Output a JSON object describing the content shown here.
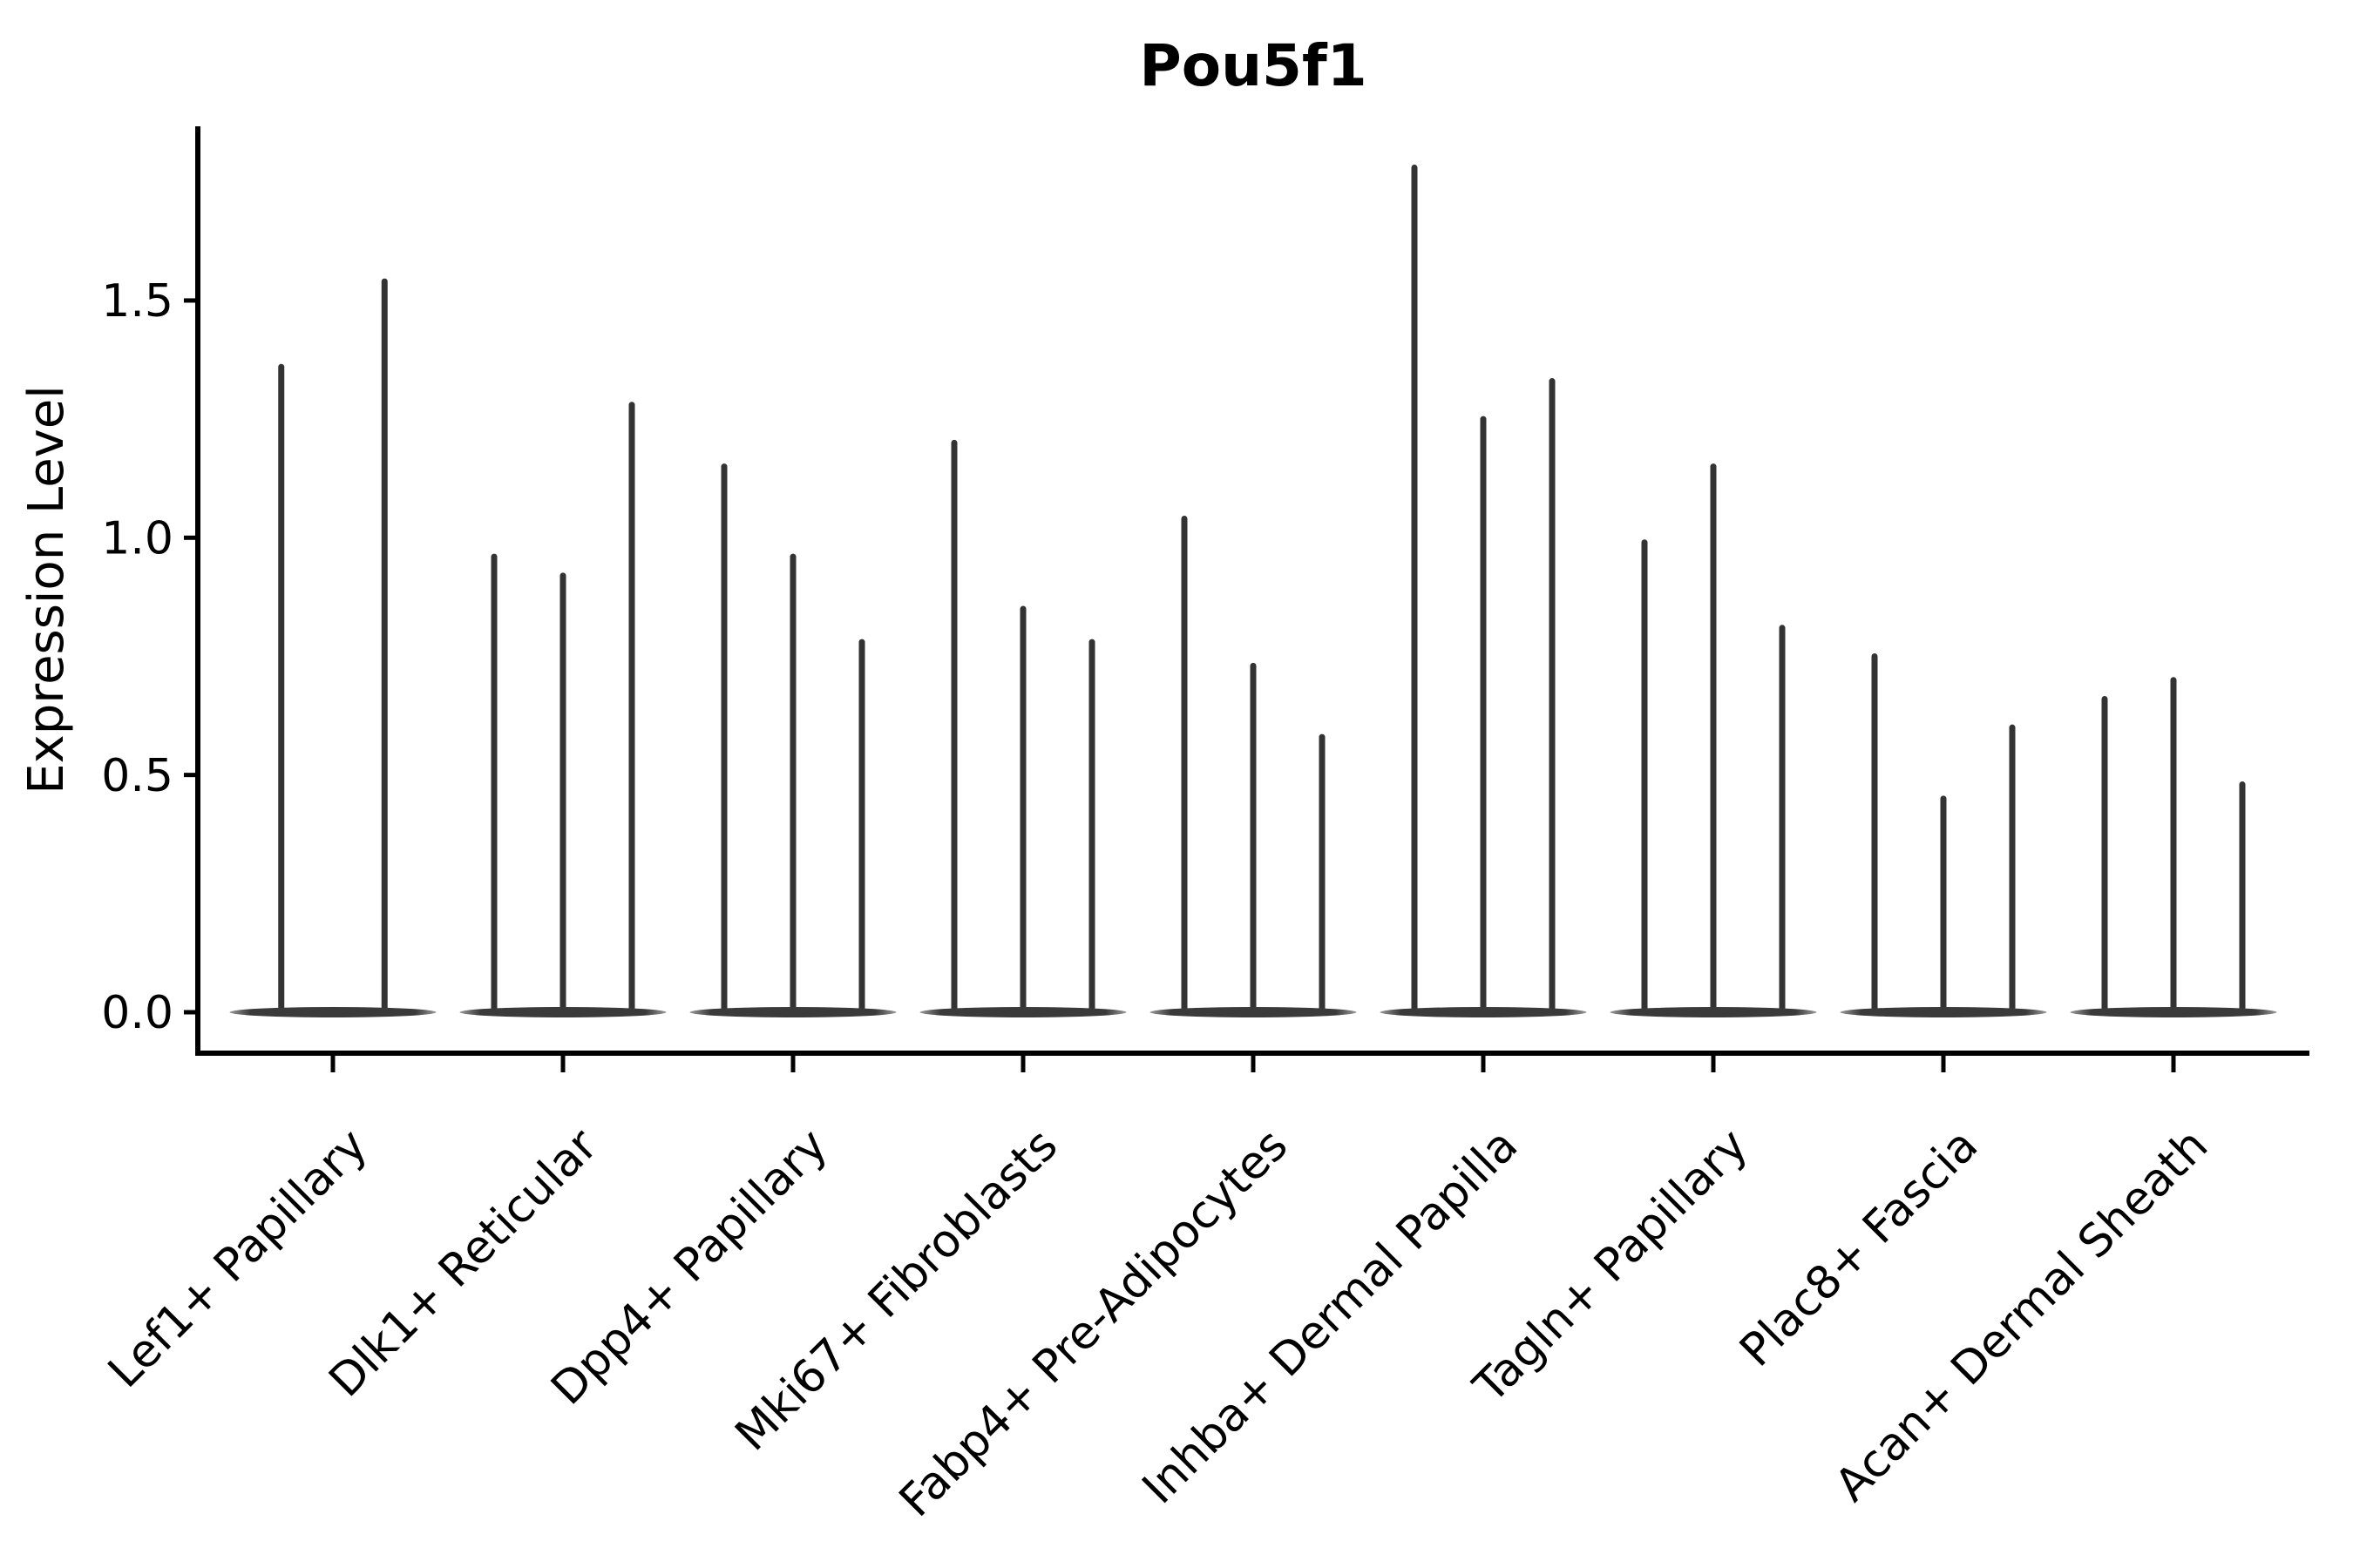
{
  "title": "Pou5f1",
  "y_axis": {
    "label": "Expression Level",
    "tick_labels": [
      "0.0",
      "0.5",
      "1.0",
      "1.5"
    ],
    "tick_values": [
      0.0,
      0.5,
      1.0,
      1.5
    ]
  },
  "chart_data": {
    "type": "violin",
    "title": "Pou5f1",
    "xlabel": "",
    "ylabel": "Expression Level",
    "ylim": [
      -0.09,
      1.87
    ],
    "yticks": [
      0.0,
      0.5,
      1.0,
      1.5
    ],
    "grid": false,
    "legend": "none",
    "orientation": "vertical",
    "description": "Grouped single-cell expression violins; each violin is a thin spike from 0 up to its maximum with a wide flat density bulge at 0.",
    "categories": [
      "Lef1+ Papillary",
      "Dlk1+ Reticular",
      "Dpp4+ Papillary",
      "Mki67+ Fibroblasts",
      "Fabp4+ Pre-Adipocytes",
      "Inhba+ Dermal Papilla",
      "Tagln+ Papillary",
      "Plac8+ Fascia",
      "Acan+ Dermal Sheath"
    ],
    "groups": [
      {
        "label": "Lef1+ Papillary",
        "violin_maxima": [
          1.36,
          1.54
        ]
      },
      {
        "label": "Dlk1+ Reticular",
        "violin_maxima": [
          0.96,
          0.92,
          1.28
        ]
      },
      {
        "label": "Dpp4+ Papillary",
        "violin_maxima": [
          1.15,
          0.96,
          0.78
        ]
      },
      {
        "label": "Mki67+ Fibroblasts",
        "violin_maxima": [
          1.2,
          0.85,
          0.78
        ]
      },
      {
        "label": "Fabp4+ Pre-Adipocytes",
        "violin_maxima": [
          1.04,
          0.73,
          0.58
        ]
      },
      {
        "label": "Inhba+ Dermal Papilla",
        "violin_maxima": [
          1.78,
          1.25,
          1.33
        ]
      },
      {
        "label": "Tagln+ Papillary",
        "violin_maxima": [
          0.99,
          1.15,
          0.81
        ]
      },
      {
        "label": "Plac8+ Fascia",
        "violin_maxima": [
          0.75,
          0.45,
          0.6
        ]
      },
      {
        "label": "Acan+ Dermal Sheath",
        "violin_maxima": [
          0.66,
          0.7,
          0.48
        ]
      }
    ],
    "baseline_value": 0.0
  },
  "style": {
    "background_color": "#ffffff",
    "axis_color": "#000000",
    "text_color": "#000000",
    "violin_color": "#333333",
    "violin_tip_color": "#999999"
  }
}
